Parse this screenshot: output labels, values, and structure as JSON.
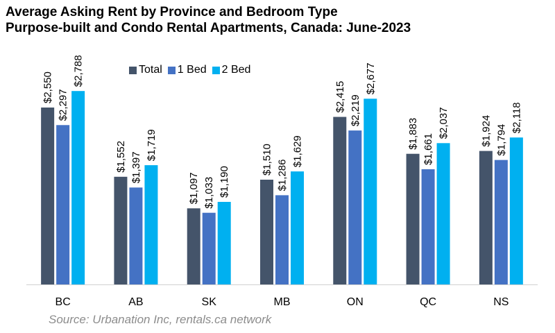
{
  "title_line1": "Average Asking Rent by Province and Bedroom Type",
  "title_line2": "Purpose-built and Condo Rental Apartments, Canada: June-2023",
  "source": "Source: Urbanation Inc, rentals.ca network",
  "chart_data": {
    "type": "bar",
    "title": "Average Asking Rent by Province and Bedroom Type Purpose-built and Condo Rental Apartments, Canada: June-2023",
    "categories": [
      "BC",
      "AB",
      "SK",
      "MB",
      "ON",
      "QC",
      "NS"
    ],
    "series": [
      {
        "name": "Total",
        "color": "#44546a",
        "values": [
          2550,
          1552,
          1097,
          1510,
          2415,
          1883,
          1924
        ],
        "labels": [
          "$2,550",
          "$1,552",
          "$1,097",
          "$1,510",
          "$2,415",
          "$1,883",
          "$1,924"
        ]
      },
      {
        "name": "1 Bed",
        "color": "#4472c4",
        "values": [
          2297,
          1397,
          1033,
          1286,
          2219,
          1661,
          1794
        ],
        "labels": [
          "$2,297",
          "$1,397",
          "$1,033",
          "$1,286",
          "$2,219",
          "$1,661",
          "$1,794"
        ]
      },
      {
        "name": "2 Bed",
        "color": "#00b0f0",
        "values": [
          2788,
          1719,
          1190,
          1629,
          2677,
          2037,
          2118
        ],
        "labels": [
          "$2,788",
          "$1,719",
          "$1,190",
          "$1,629",
          "$2,677",
          "$2,037",
          "$2,118"
        ]
      }
    ],
    "ylim": [
      0,
      3000
    ],
    "legend_position": "top",
    "grid": false
  }
}
